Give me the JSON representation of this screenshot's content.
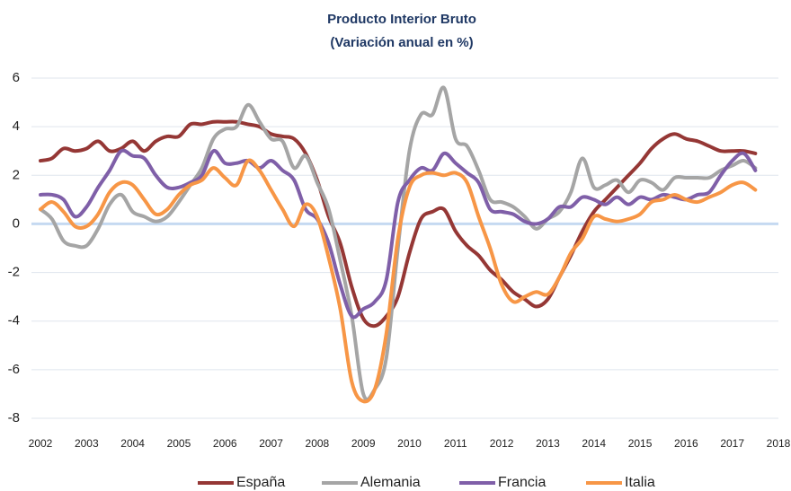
{
  "chart_data": {
    "type": "line",
    "title": "Producto Interior Bruto",
    "subtitle": "(Variación anual en %)",
    "x": [
      2002,
      2002.25,
      2002.5,
      2002.75,
      2003,
      2003.25,
      2003.5,
      2003.75,
      2004,
      2004.25,
      2004.5,
      2004.75,
      2005,
      2005.25,
      2005.5,
      2005.75,
      2006,
      2006.25,
      2006.5,
      2006.75,
      2007,
      2007.25,
      2007.5,
      2007.75,
      2008,
      2008.25,
      2008.5,
      2008.75,
      2009,
      2009.25,
      2009.5,
      2009.75,
      2010,
      2010.25,
      2010.5,
      2010.75,
      2011,
      2011.25,
      2011.5,
      2011.75,
      2012,
      2012.25,
      2012.5,
      2012.75,
      2013,
      2013.25,
      2013.5,
      2013.75,
      2014,
      2014.25,
      2014.5,
      2014.75,
      2015,
      2015.25,
      2015.5,
      2015.75,
      2016,
      2016.25,
      2016.5,
      2016.75,
      2017,
      2017.25,
      2017.5
    ],
    "series": [
      {
        "name": "España",
        "color": "#953735",
        "values": [
          2.6,
          2.7,
          3.1,
          3.0,
          3.1,
          3.4,
          3.0,
          3.1,
          3.4,
          3.0,
          3.4,
          3.6,
          3.6,
          4.1,
          4.1,
          4.2,
          4.2,
          4.2,
          4.1,
          4.0,
          3.7,
          3.6,
          3.5,
          2.9,
          1.8,
          0.3,
          -0.8,
          -2.6,
          -3.9,
          -4.2,
          -3.8,
          -3.0,
          -1.2,
          0.2,
          0.5,
          0.6,
          -0.3,
          -0.9,
          -1.3,
          -1.9,
          -2.3,
          -2.8,
          -3.1,
          -3.4,
          -3.1,
          -2.2,
          -1.3,
          -0.3,
          0.5,
          1.0,
          1.5,
          2.0,
          2.5,
          3.1,
          3.5,
          3.7,
          3.5,
          3.4,
          3.2,
          3.0,
          3.0,
          3.0,
          2.9
        ]
      },
      {
        "name": "Alemania",
        "color": "#a5a5a5",
        "values": [
          0.6,
          0.2,
          -0.7,
          -0.9,
          -0.9,
          -0.2,
          0.8,
          1.2,
          0.5,
          0.3,
          0.1,
          0.3,
          0.9,
          1.6,
          2.3,
          3.5,
          3.9,
          4.0,
          4.9,
          4.2,
          3.5,
          3.4,
          2.3,
          2.8,
          1.7,
          0.6,
          -1.5,
          -3.8,
          -7.0,
          -6.8,
          -5.5,
          -1.0,
          3.0,
          4.5,
          4.5,
          5.6,
          3.5,
          3.2,
          2.2,
          1.0,
          0.9,
          0.7,
          0.3,
          -0.2,
          0.2,
          0.5,
          1.3,
          2.7,
          1.5,
          1.6,
          1.8,
          1.3,
          1.8,
          1.7,
          1.4,
          1.9,
          1.9,
          1.9,
          1.9,
          2.2,
          2.4,
          2.6,
          2.3
        ]
      },
      {
        "name": "Francia",
        "color": "#7f5fa8",
        "values": [
          1.2,
          1.2,
          1.0,
          0.3,
          0.7,
          1.5,
          2.2,
          3.0,
          2.8,
          2.7,
          2.0,
          1.5,
          1.5,
          1.7,
          2.0,
          3.0,
          2.5,
          2.5,
          2.6,
          2.3,
          2.6,
          2.2,
          1.8,
          0.6,
          0.2,
          -0.8,
          -2.5,
          -3.8,
          -3.5,
          -3.2,
          -2.3,
          0.9,
          1.8,
          2.3,
          2.2,
          2.9,
          2.5,
          2.1,
          1.7,
          0.6,
          0.5,
          0.4,
          0.1,
          0.0,
          0.2,
          0.7,
          0.7,
          1.1,
          1.0,
          0.8,
          1.1,
          0.8,
          1.1,
          1.0,
          1.2,
          1.1,
          1.0,
          1.2,
          1.3,
          2.0,
          2.6,
          2.9,
          2.2
        ]
      },
      {
        "name": "Italia",
        "color": "#f79646",
        "values": [
          0.6,
          0.9,
          0.5,
          -0.1,
          -0.1,
          0.4,
          1.3,
          1.7,
          1.6,
          1.0,
          0.4,
          0.6,
          1.2,
          1.6,
          1.8,
          2.3,
          1.9,
          1.6,
          2.6,
          2.2,
          1.4,
          0.6,
          -0.1,
          0.8,
          0.3,
          -1.4,
          -3.5,
          -6.5,
          -7.3,
          -6.8,
          -4.5,
          -0.6,
          1.5,
          2.0,
          2.1,
          2.0,
          2.1,
          1.7,
          0.3,
          -1.0,
          -2.5,
          -3.2,
          -3.0,
          -2.8,
          -2.9,
          -2.2,
          -1.2,
          -0.6,
          0.3,
          0.2,
          0.1,
          0.2,
          0.4,
          0.9,
          1.0,
          1.2,
          1.0,
          0.9,
          1.1,
          1.3,
          1.6,
          1.7,
          1.4
        ]
      }
    ],
    "xlim": [
      2002,
      2018
    ],
    "xticks": [
      2002,
      2003,
      2004,
      2005,
      2006,
      2007,
      2008,
      2009,
      2010,
      2011,
      2012,
      2013,
      2014,
      2015,
      2016,
      2017,
      2018
    ],
    "ylim": [
      -8,
      6
    ],
    "yticks": [
      -8,
      -6,
      -4,
      -2,
      0,
      2,
      4,
      6
    ],
    "grid": true,
    "legend": "bottom"
  }
}
